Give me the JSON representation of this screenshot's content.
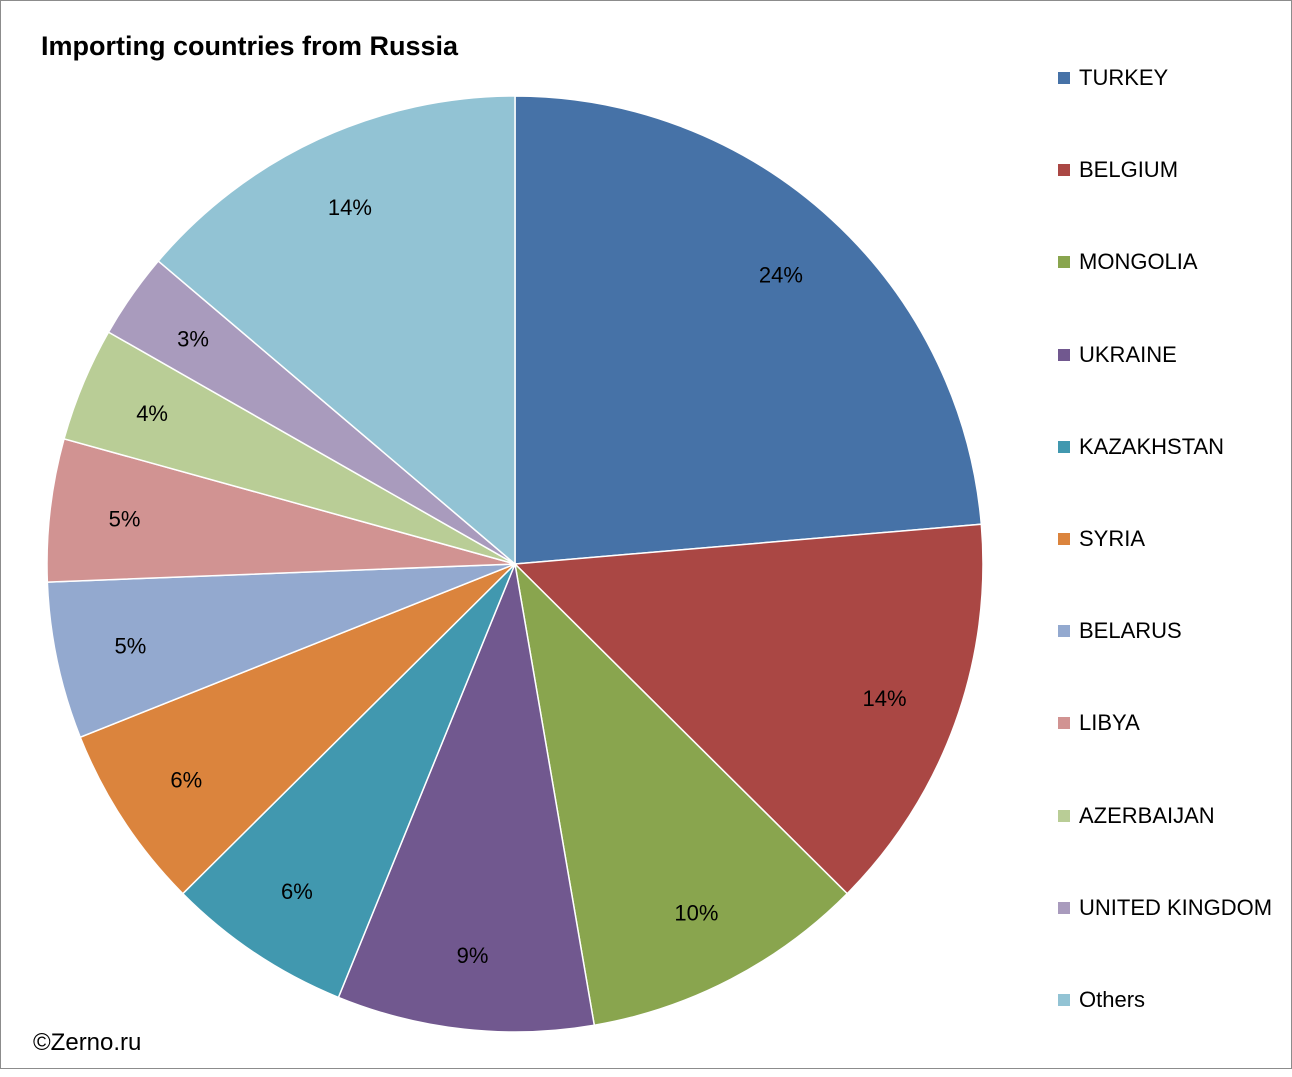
{
  "chart_data": {
    "type": "pie",
    "title": "Importing countries from Russia",
    "legend_position": "right",
    "slices": [
      {
        "label": "TURKEY",
        "value": 24,
        "display": "24%",
        "color": "#4672A7"
      },
      {
        "label": "BELGIUM",
        "value": 14,
        "display": "14%",
        "color": "#AA4744"
      },
      {
        "label": "MONGOLIA",
        "value": 10,
        "display": "10%",
        "color": "#89A54E"
      },
      {
        "label": "UKRAINE",
        "value": 9,
        "display": "9%",
        "color": "#71588F"
      },
      {
        "label": "KAZAKHSTAN",
        "value": 6.5,
        "display": "6%",
        "color": "#4198AF"
      },
      {
        "label": "SYRIA",
        "value": 6.5,
        "display": "6%",
        "color": "#DB843D"
      },
      {
        "label": "BELARUS",
        "value": 5.5,
        "display": "5%",
        "color": "#93A9CF"
      },
      {
        "label": "LIBYA",
        "value": 5,
        "display": "5%",
        "color": "#D19392"
      },
      {
        "label": "AZERBAIJAN",
        "value": 4,
        "display": "4%",
        "color": "#B9CD96"
      },
      {
        "label": "UNITED KINGDOM",
        "value": 3,
        "display": "3%",
        "color": "#A99BBD"
      },
      {
        "label": "Others",
        "value": 14,
        "display": "14%",
        "color": "#92C3D4"
      }
    ]
  },
  "footer": {
    "copyright": "©Zerno.ru"
  }
}
